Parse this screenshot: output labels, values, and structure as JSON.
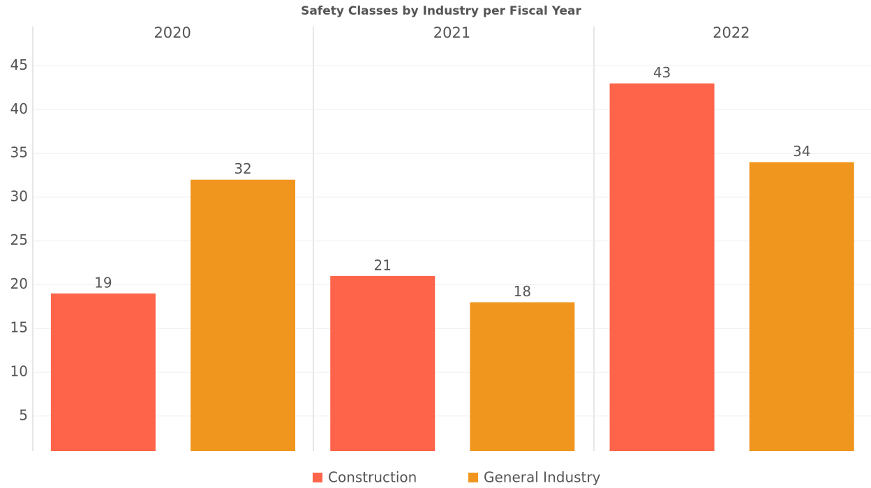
{
  "chart_data": {
    "type": "bar",
    "title": "Safety Classes by Industry per Fiscal Year",
    "categories": [
      "2020",
      "2021",
      "2022"
    ],
    "series": [
      {
        "name": "Construction",
        "color": "#fe6449",
        "values": [
          19,
          21,
          43
        ]
      },
      {
        "name": "General Industry",
        "color": "#f0961e",
        "values": [
          32,
          18,
          34
        ]
      }
    ],
    "ylim": [
      1,
      49.5
    ],
    "yticks": [
      5,
      10,
      15,
      20,
      25,
      30,
      35,
      40,
      45
    ],
    "grid": true,
    "legend": "bottom"
  }
}
